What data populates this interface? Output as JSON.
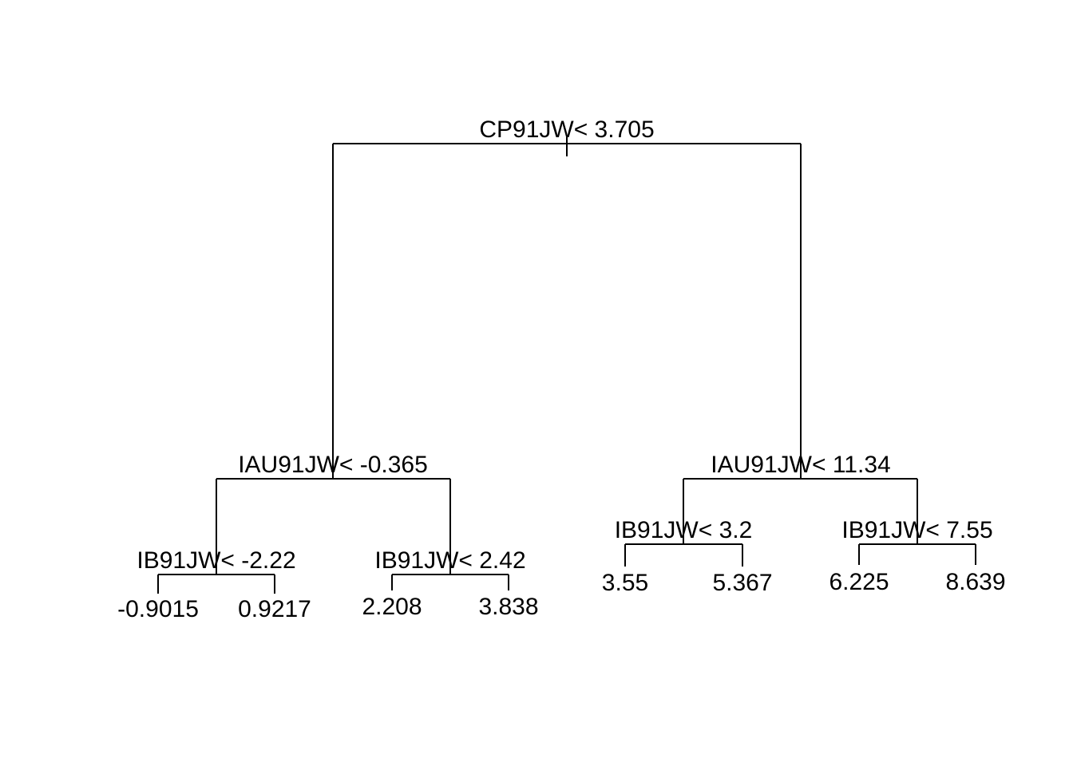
{
  "tree": {
    "root": {
      "label": "CP91JW< 3.705",
      "left": {
        "label": "IAU91JW< -0.365",
        "left": {
          "label": "IB91JW< -2.22",
          "left": {
            "label": "-0.9015"
          },
          "right": {
            "label": "0.9217"
          }
        },
        "right": {
          "label": "IB91JW< 2.42",
          "left": {
            "label": "2.208"
          },
          "right": {
            "label": "3.838"
          }
        }
      },
      "right": {
        "label": "IAU91JW< 11.34",
        "left": {
          "label": "IB91JW< 3.2",
          "left": {
            "label": "3.55"
          },
          "right": {
            "label": "5.367"
          }
        },
        "right": {
          "label": "IB91JW< 7.55",
          "left": {
            "label": "6.225"
          },
          "right": {
            "label": "8.639"
          }
        }
      }
    }
  }
}
